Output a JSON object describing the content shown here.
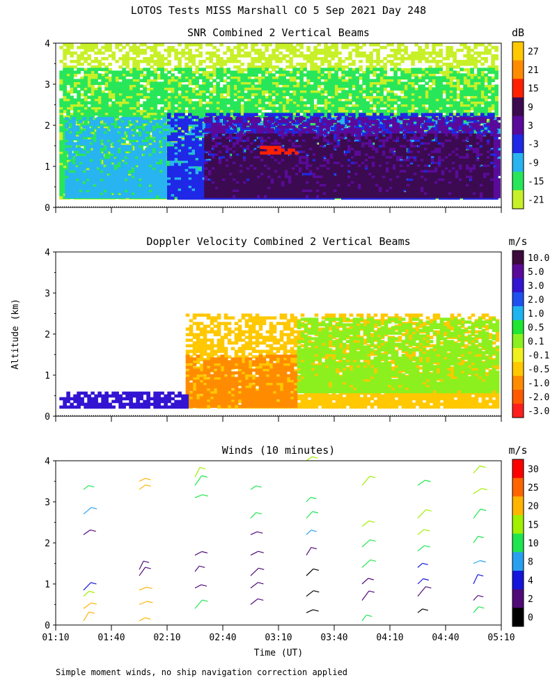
{
  "title": "LOTOS Tests MISS Marshall CO   5 Sep 2021 Day 248",
  "ylabel": "Altitude (km)",
  "xlabel": "Time (UT)",
  "footnote": "Simple moment winds, no ship navigation correction applied",
  "x_ticks": [
    "01:10",
    "01:40",
    "02:10",
    "02:40",
    "03:10",
    "03:40",
    "04:10",
    "04:40",
    "05:10"
  ],
  "y_ticks": [
    "0",
    "1",
    "2",
    "3",
    "4"
  ],
  "chart_data": [
    {
      "type": "heatmap",
      "title": "SNR Combined 2 Vertical Beams",
      "unit": "dB",
      "xlim": [
        "01:10",
        "05:10"
      ],
      "ylim": [
        0,
        4
      ],
      "colorbar_labels": [
        "27",
        "21",
        "15",
        "9",
        "3",
        "-3",
        "-9",
        "-15",
        "-21"
      ],
      "colorbar_colors": [
        "#ffc800",
        "#ff8c00",
        "#ff2000",
        "#3c0a50",
        "#5a0a9a",
        "#1e28e6",
        "#28b4f0",
        "#28e65a",
        "#c8f028"
      ],
      "fields": [
        {
          "level": -18,
          "t": [
            "01:12",
            "05:08"
          ],
          "alt": [
            0.25,
            4.0
          ]
        },
        {
          "level": -12,
          "t": [
            "01:12",
            "05:08"
          ],
          "alt": [
            0.25,
            3.4
          ]
        },
        {
          "level": -6,
          "t": [
            "01:15",
            "05:08"
          ],
          "alt": [
            0.25,
            2.2
          ]
        },
        {
          "level": 0,
          "t": [
            "02:10",
            "05:08"
          ],
          "alt": [
            0.25,
            2.3
          ]
        },
        {
          "level": 6,
          "t": [
            "02:30",
            "05:08"
          ],
          "alt": [
            0.25,
            2.2
          ]
        },
        {
          "level": 12,
          "t": [
            "02:30",
            "05:05"
          ],
          "alt": [
            0.3,
            1.8
          ]
        },
        {
          "level": 18,
          "t": [
            "03:00",
            "03:20"
          ],
          "alt": [
            1.3,
            1.5
          ]
        }
      ]
    },
    {
      "type": "heatmap",
      "title": "Doppler Velocity Combined 2 Vertical Beams",
      "unit": "m/s",
      "xlim": [
        "01:10",
        "05:10"
      ],
      "ylim": [
        0,
        4
      ],
      "colorbar_labels": [
        "10.0",
        "5.0",
        "3.0",
        "2.0",
        "1.0",
        "0.5",
        "0.1",
        "-0.1",
        "-0.5",
        "-1.0",
        "-2.0",
        "-3.0"
      ],
      "colorbar_colors": [
        "#3c0a3c",
        "#5a0a9a",
        "#3214d2",
        "#1e50f0",
        "#1eb4f0",
        "#1ee632",
        "#8cf01e",
        "#f0f01e",
        "#ffc800",
        "#ff8c00",
        "#ff5a00",
        "#ff1e1e"
      ],
      "fields": [
        {
          "level": -0.3,
          "t": [
            "02:20",
            "05:08"
          ],
          "alt": [
            0.25,
            2.5
          ]
        },
        {
          "level": -0.7,
          "t": [
            "02:20",
            "03:20"
          ],
          "alt": [
            0.25,
            1.5
          ]
        },
        {
          "level": 0.3,
          "t": [
            "03:20",
            "05:08"
          ],
          "alt": [
            0.6,
            2.4
          ]
        },
        {
          "level": 4,
          "t": [
            "01:12",
            "02:20"
          ],
          "alt": [
            0.25,
            0.6
          ]
        }
      ]
    },
    {
      "type": "barbs",
      "title": "Winds (10 minutes)",
      "unit": "m/s",
      "xlim": [
        "01:10",
        "05:10"
      ],
      "ylim": [
        0,
        4
      ],
      "colorbar_labels": [
        "30",
        "25",
        "20",
        "15",
        "10",
        "8",
        "4",
        "2",
        "0"
      ],
      "colorbar_colors": [
        "#ff0000",
        "#ff6400",
        "#ffb400",
        "#a0f000",
        "#1ee650",
        "#28a0f0",
        "#1414dc",
        "#500a78",
        "#000000"
      ],
      "columns": [
        {
          "time": "01:25",
          "profile": [
            [
              0.1,
              21
            ],
            [
              0.4,
              20
            ],
            [
              0.7,
              17
            ],
            [
              0.85,
              5
            ],
            [
              2.2,
              3
            ],
            [
              2.7,
              9
            ],
            [
              3.3,
              14
            ]
          ]
        },
        {
          "time": "01:55",
          "profile": [
            [
              0.1,
              21
            ],
            [
              0.5,
              20
            ],
            [
              0.85,
              20
            ],
            [
              1.2,
              3
            ],
            [
              1.35,
              3
            ],
            [
              3.3,
              20
            ],
            [
              3.5,
              21
            ]
          ]
        },
        {
          "time": "02:25",
          "profile": [
            [
              0.4,
              12
            ],
            [
              0.9,
              3
            ],
            [
              1.3,
              3
            ],
            [
              1.7,
              3
            ],
            [
              3.1,
              14
            ],
            [
              3.4,
              14
            ],
            [
              3.6,
              18
            ]
          ]
        },
        {
          "time": "02:55",
          "profile": [
            [
              0.5,
              3
            ],
            [
              0.9,
              3
            ],
            [
              1.2,
              3
            ],
            [
              1.7,
              3
            ],
            [
              2.2,
              3
            ],
            [
              2.6,
              14
            ],
            [
              3.3,
              14
            ]
          ]
        },
        {
          "time": "03:25",
          "profile": [
            [
              0.3,
              1
            ],
            [
              0.7,
              1
            ],
            [
              1.2,
              1
            ],
            [
              1.7,
              3
            ],
            [
              2.2,
              9
            ],
            [
              2.6,
              12
            ],
            [
              3.0,
              14
            ],
            [
              4.0,
              16
            ]
          ]
        },
        {
          "time": "03:55",
          "profile": [
            [
              0.1,
              14
            ],
            [
              0.6,
              3
            ],
            [
              1.0,
              3
            ],
            [
              1.4,
              12
            ],
            [
              1.9,
              12
            ],
            [
              2.4,
              18
            ],
            [
              3.4,
              18
            ]
          ]
        },
        {
          "time": "04:25",
          "profile": [
            [
              0.3,
              1
            ],
            [
              0.7,
              3
            ],
            [
              1.0,
              4
            ],
            [
              1.4,
              6
            ],
            [
              1.8,
              12
            ],
            [
              2.2,
              18
            ],
            [
              2.6,
              18
            ],
            [
              3.4,
              14
            ]
          ]
        },
        {
          "time": "04:55",
          "profile": [
            [
              0.3,
              10
            ],
            [
              0.6,
              3
            ],
            [
              1.0,
              4
            ],
            [
              1.5,
              8
            ],
            [
              2.0,
              12
            ],
            [
              2.6,
              14
            ],
            [
              3.2,
              18
            ],
            [
              3.7,
              18
            ]
          ]
        }
      ]
    }
  ]
}
